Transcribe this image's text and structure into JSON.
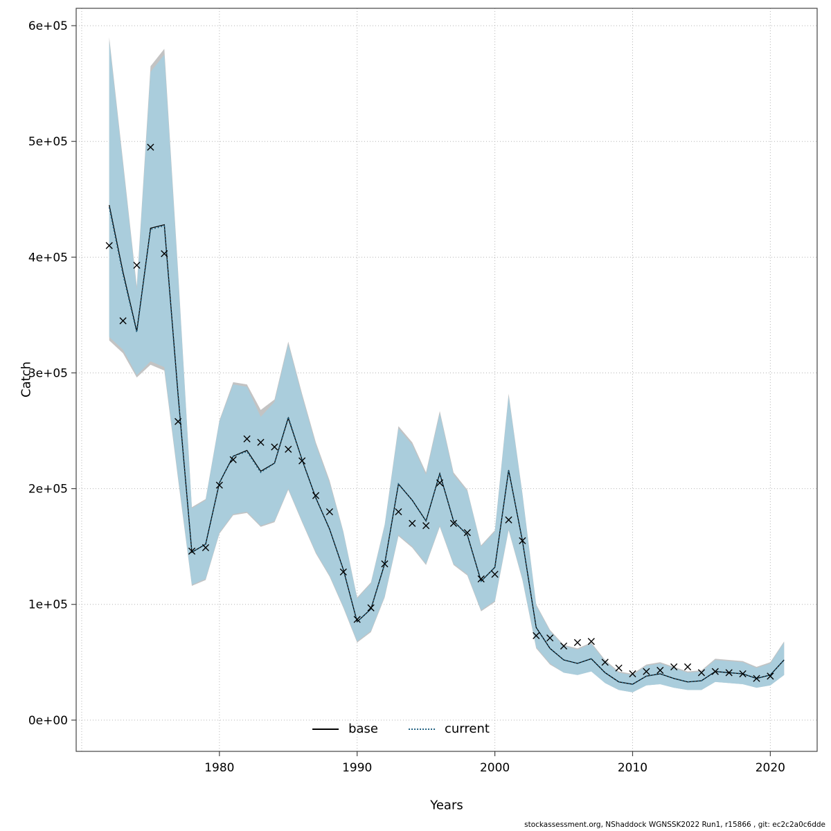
{
  "page": {
    "background": "#ffffff"
  },
  "footer": {
    "text": "stockassessment.org, NShaddock WGNSSK2022 Run1, r15866 , git: ec2c2a0c6dde"
  },
  "chart_data": {
    "type": "line",
    "title": "",
    "xlabel": "Years",
    "ylabel": "Catch",
    "xlim": [
      1969.6,
      2023.4
    ],
    "ylim": [
      -27000,
      615000
    ],
    "grid": true,
    "x_grid": [
      1970,
      1980,
      1990,
      2000,
      2010,
      2020
    ],
    "x_ticks": [
      1980,
      1990,
      2000,
      2010,
      2020
    ],
    "x_tick_labels": [
      "1980",
      "1990",
      "2000",
      "2010",
      "2020"
    ],
    "y_ticks": [
      0,
      100000,
      200000,
      300000,
      400000,
      500000,
      600000
    ],
    "y_tick_labels": [
      "0e+00",
      "1e+05",
      "2e+05",
      "3e+05",
      "4e+05",
      "5e+05",
      "6e+05"
    ],
    "legend": {
      "position": "bottom-center-inside",
      "entries": [
        {
          "label": "base",
          "style": "solid",
          "color": "#000000"
        },
        {
          "label": "current",
          "style": "dotted",
          "color": "#1f5f7f"
        }
      ]
    },
    "years": [
      1972,
      1973,
      1974,
      1975,
      1976,
      1977,
      1978,
      1979,
      1980,
      1981,
      1982,
      1983,
      1984,
      1985,
      1986,
      1987,
      1988,
      1989,
      1990,
      1991,
      1992,
      1993,
      1994,
      1995,
      1996,
      1997,
      1998,
      1999,
      2000,
      2001,
      2002,
      2003,
      2004,
      2005,
      2006,
      2007,
      2008,
      2009,
      2010,
      2011,
      2012,
      2013,
      2014,
      2015,
      2016,
      2017,
      2018,
      2019,
      2020,
      2021
    ],
    "observed": [
      410000,
      345000,
      393000,
      495000,
      403000,
      258000,
      146000,
      149000,
      203000,
      225000,
      243000,
      240000,
      236000,
      234000,
      224000,
      194000,
      180000,
      128000,
      87000,
      97000,
      135000,
      180000,
      170000,
      168000,
      205000,
      170000,
      162000,
      122000,
      126000,
      173000,
      155000,
      73000,
      71000,
      64000,
      67000,
      68000,
      50000,
      45000,
      40000,
      42000,
      43000,
      46000,
      46000,
      41000,
      42000,
      41000,
      40000,
      36000,
      38000,
      null
    ],
    "series": [
      {
        "name": "base",
        "color": "#000000",
        "width": 1.3,
        "dash": "",
        "band_color": "#bdbdbd",
        "band_opacity": 0.9,
        "fit": [
          445000,
          387000,
          336000,
          425000,
          428000,
          281000,
          145000,
          152000,
          205000,
          228000,
          233000,
          215000,
          222000,
          261000,
          225000,
          192000,
          165000,
          130000,
          85000,
          96000,
          135000,
          204000,
          190000,
          172000,
          213000,
          172000,
          160000,
          120000,
          132000,
          216000,
          155000,
          80000,
          62000,
          52000,
          49000,
          53000,
          41000,
          33000,
          31000,
          38000,
          40000,
          36000,
          33000,
          34000,
          42000,
          41000,
          40000,
          36000,
          39000,
          52000
        ],
        "lo": [
          328000,
          317000,
          296000,
          307000,
          302000,
          208000,
          116000,
          121000,
          161000,
          177000,
          179000,
          167000,
          171000,
          199000,
          171000,
          144000,
          124000,
          97000,
          67000,
          76000,
          106000,
          159000,
          149000,
          134000,
          167000,
          134000,
          125000,
          94000,
          102000,
          164000,
          121000,
          62000,
          48000,
          41000,
          39000,
          42000,
          32000,
          26000,
          24000,
          30000,
          31000,
          28000,
          26000,
          26000,
          33000,
          32000,
          31000,
          28000,
          30000,
          39000
        ],
        "hi": [
          590000,
          483000,
          375000,
          565000,
          580000,
          388000,
          184000,
          191000,
          259000,
          292000,
          290000,
          268000,
          277000,
          327000,
          282000,
          240000,
          207000,
          163000,
          106000,
          119000,
          169000,
          254000,
          240000,
          214000,
          267000,
          214000,
          199000,
          151000,
          164000,
          282000,
          196000,
          100000,
          78000,
          65000,
          62000,
          67000,
          52000,
          42000,
          40000,
          48000,
          50000,
          46000,
          42000,
          43000,
          53000,
          52000,
          51000,
          46000,
          50000,
          68000
        ]
      },
      {
        "name": "current",
        "color": "#1f5f7f",
        "width": 1.7,
        "dash": "1.8 3",
        "band_color": "#a9cddd",
        "band_opacity": 0.95,
        "fit": [
          443000,
          385000,
          335000,
          424000,
          427000,
          280000,
          145000,
          152000,
          205000,
          228000,
          232000,
          214000,
          222000,
          262000,
          225000,
          192000,
          165000,
          130000,
          85000,
          96000,
          135000,
          204000,
          190000,
          172000,
          213000,
          172000,
          160000,
          120000,
          132000,
          216000,
          155000,
          80000,
          62000,
          52000,
          49000,
          53000,
          41000,
          33000,
          31000,
          38000,
          40000,
          36000,
          33000,
          34000,
          42000,
          41000,
          40000,
          36000,
          39000,
          52000
        ],
        "lo": [
          331000,
          320000,
          298000,
          310000,
          305000,
          210000,
          117000,
          122000,
          162000,
          178000,
          180000,
          168000,
          172000,
          200000,
          172000,
          145000,
          125000,
          98000,
          68000,
          77000,
          107000,
          160000,
          150000,
          135000,
          168000,
          135000,
          126000,
          95000,
          103000,
          165000,
          122000,
          63000,
          49000,
          41000,
          39000,
          42000,
          32000,
          26000,
          24000,
          30000,
          31000,
          28000,
          26000,
          26000,
          33000,
          32000,
          31000,
          28000,
          30000,
          39000
        ],
        "hi": [
          587000,
          480000,
          372000,
          560000,
          575000,
          385000,
          183000,
          190000,
          258000,
          290000,
          288000,
          262000,
          275000,
          325000,
          280000,
          238000,
          205000,
          162000,
          105000,
          118000,
          168000,
          252000,
          238000,
          212000,
          265000,
          212000,
          198000,
          150000,
          163000,
          280000,
          195000,
          99000,
          77000,
          64000,
          61000,
          66000,
          51000,
          41000,
          39000,
          47000,
          49000,
          45000,
          41000,
          42000,
          52000,
          51000,
          50000,
          45000,
          49000,
          67000
        ]
      }
    ]
  }
}
